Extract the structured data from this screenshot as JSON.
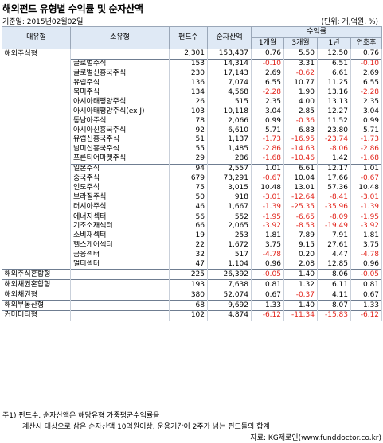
{
  "title": "해외펀드 유형별 수익률 및 순자산액",
  "base_date": "기준일: 2015년02월02일",
  "unit": "(단위: 개,억원, %)",
  "header": {
    "major": "대유형",
    "minor": "소유형",
    "count": "펀드수",
    "assets": "순자산액",
    "returns_group": "수익률",
    "m1": "1개월",
    "m3": "3개월",
    "y1": "1년",
    "ytd": "연초후"
  },
  "rows": [
    {
      "major": "해외주식형",
      "minor": "",
      "count": "2,301",
      "assets": "153,437",
      "m1": "0.76",
      "m3": "5.50",
      "y1": "12.50",
      "ytd": "0.76"
    },
    {
      "major": "",
      "minor": "글로벌주식",
      "count": "153",
      "assets": "14,314",
      "m1": "-0.10",
      "m3": "3.31",
      "y1": "6.51",
      "ytd": "-0.10"
    },
    {
      "major": "",
      "minor": "글로벌신흥국주식",
      "count": "230",
      "assets": "17,143",
      "m1": "2.69",
      "m3": "-0.62",
      "y1": "6.61",
      "ytd": "2.69"
    },
    {
      "major": "",
      "minor": "유럽주식",
      "count": "136",
      "assets": "7,074",
      "m1": "6.55",
      "m3": "10.77",
      "y1": "11.25",
      "ytd": "6.55"
    },
    {
      "major": "",
      "minor": "북미주식",
      "count": "134",
      "assets": "4,568",
      "m1": "-2.28",
      "m3": "1.90",
      "y1": "13.16",
      "ytd": "-2.28"
    },
    {
      "major": "",
      "minor": "아시아태평양주식",
      "count": "26",
      "assets": "515",
      "m1": "2.35",
      "m3": "4.00",
      "y1": "13.13",
      "ytd": "2.35"
    },
    {
      "major": "",
      "minor": "아시아태평양주식(ex J)",
      "count": "103",
      "assets": "10,118",
      "m1": "3.04",
      "m3": "2.85",
      "y1": "12.27",
      "ytd": "3.04"
    },
    {
      "major": "",
      "minor": "동남아주식",
      "count": "78",
      "assets": "2,066",
      "m1": "0.99",
      "m3": "-0.36",
      "y1": "11.52",
      "ytd": "0.99"
    },
    {
      "major": "",
      "minor": "아시아신흥국주식",
      "count": "92",
      "assets": "6,610",
      "m1": "5.71",
      "m3": "6.83",
      "y1": "23.80",
      "ytd": "5.71"
    },
    {
      "major": "",
      "minor": "유럽신흥국주식",
      "count": "51",
      "assets": "1,137",
      "m1": "-1.73",
      "m3": "-16.95",
      "y1": "-23.74",
      "ytd": "-1.73"
    },
    {
      "major": "",
      "minor": "남미신흥국주식",
      "count": "55",
      "assets": "1,485",
      "m1": "-2.86",
      "m3": "-14.63",
      "y1": "-8.06",
      "ytd": "-2.86"
    },
    {
      "major": "",
      "minor": "프론티어마켓주식",
      "count": "29",
      "assets": "286",
      "m1": "-1.68",
      "m3": "-10.46",
      "y1": "1.42",
      "ytd": "-1.68"
    },
    {
      "major": "",
      "minor": "일본주식",
      "count": "94",
      "assets": "2,557",
      "m1": "1.01",
      "m3": "6.61",
      "y1": "12.17",
      "ytd": "1.01"
    },
    {
      "major": "",
      "minor": "중국주식",
      "count": "679",
      "assets": "73,291",
      "m1": "-0.67",
      "m3": "10.04",
      "y1": "17.66",
      "ytd": "-0.67"
    },
    {
      "major": "",
      "minor": "인도주식",
      "count": "75",
      "assets": "3,015",
      "m1": "10.48",
      "m3": "13.01",
      "y1": "57.36",
      "ytd": "10.48"
    },
    {
      "major": "",
      "minor": "브라질주식",
      "count": "50",
      "assets": "918",
      "m1": "-3.01",
      "m3": "-12.64",
      "y1": "-8.41",
      "ytd": "-3.01"
    },
    {
      "major": "",
      "minor": "러시아주식",
      "count": "46",
      "assets": "1,667",
      "m1": "-1.39",
      "m3": "-25.35",
      "y1": "-35.96",
      "ytd": "-1.39"
    },
    {
      "major": "",
      "minor": "에너지섹터",
      "count": "56",
      "assets": "552",
      "m1": "-1.95",
      "m3": "-6.65",
      "y1": "-8.09",
      "ytd": "-1.95"
    },
    {
      "major": "",
      "minor": "기초소재섹터",
      "count": "66",
      "assets": "2,065",
      "m1": "-3.92",
      "m3": "-8.53",
      "y1": "-19.49",
      "ytd": "-3.92"
    },
    {
      "major": "",
      "minor": "소비재섹터",
      "count": "19",
      "assets": "253",
      "m1": "1.81",
      "m3": "7.89",
      "y1": "7.91",
      "ytd": "1.81"
    },
    {
      "major": "",
      "minor": "헬스케어섹터",
      "count": "22",
      "assets": "1,672",
      "m1": "3.75",
      "m3": "9.15",
      "y1": "27.61",
      "ytd": "3.75"
    },
    {
      "major": "",
      "minor": "금융섹터",
      "count": "32",
      "assets": "517",
      "m1": "-4.78",
      "m3": "0.20",
      "y1": "4.47",
      "ytd": "-4.78"
    },
    {
      "major": "",
      "minor": "멀티섹터",
      "count": "47",
      "assets": "1,104",
      "m1": "0.96",
      "m3": "2.08",
      "y1": "12.85",
      "ytd": "0.96"
    },
    {
      "major": "해외주식혼합형",
      "minor": "",
      "count": "225",
      "assets": "26,392",
      "m1": "-0.05",
      "m3": "1.40",
      "y1": "8.06",
      "ytd": "-0.05"
    },
    {
      "major": "해외채권혼합형",
      "minor": "",
      "count": "193",
      "assets": "7,638",
      "m1": "0.81",
      "m3": "1.32",
      "y1": "6.11",
      "ytd": "0.81"
    },
    {
      "major": "해외채권형",
      "minor": "",
      "count": "380",
      "assets": "52,074",
      "m1": "0.67",
      "m3": "-0.37",
      "y1": "4.11",
      "ytd": "0.67"
    },
    {
      "major": "해외부동산형",
      "minor": "",
      "count": "68",
      "assets": "9,692",
      "m1": "1.33",
      "m3": "1.40",
      "y1": "8.07",
      "ytd": "1.33"
    },
    {
      "major": "커머더티형",
      "minor": "",
      "count": "102",
      "assets": "4,874",
      "m1": "-6.12",
      "m3": "-11.34",
      "y1": "-15.83",
      "ytd": "-6.12"
    }
  ],
  "footnote1": "주1) 펀드수, 순자산액은 해당유형 가중평균수익률을",
  "footnote2": "계산시 대상으로 삼은 순자산액 10억원이상, 운용기간이 2주가 넘는 펀드들의 합계",
  "source": "자료: KG제로인(www.funddoctor.co.kr)",
  "colors": {
    "header_bg": "#dfe9f5",
    "negative": "#e2231a",
    "rule": "#6f7d91"
  }
}
